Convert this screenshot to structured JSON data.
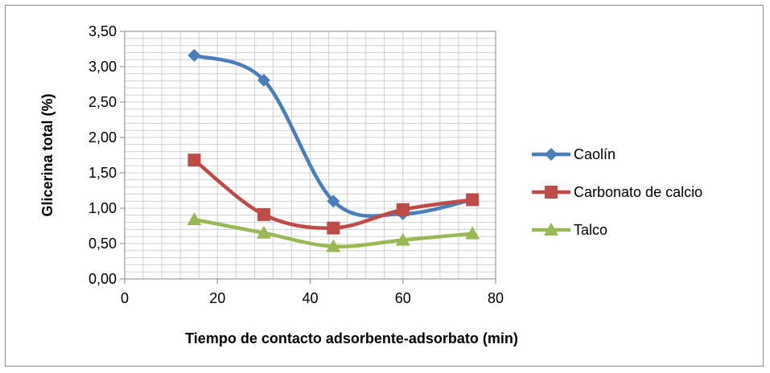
{
  "chart_data": {
    "type": "line",
    "title": "",
    "xlabel": "Tiempo de contacto adsorbente-adsorbato (min)",
    "ylabel": "Glicerina total (%)",
    "xlim": [
      0,
      80
    ],
    "ylim": [
      0,
      3.5
    ],
    "x_ticks": [
      0,
      20,
      40,
      60,
      80
    ],
    "x_tick_labels": [
      "0",
      "20",
      "40",
      "60",
      "80"
    ],
    "y_ticks": [
      0,
      0.5,
      1,
      1.5,
      2,
      2.5,
      3,
      3.5
    ],
    "y_tick_labels": [
      "0,00",
      "0,50",
      "1,00",
      "1,50",
      "2,00",
      "2,50",
      "3,00",
      "3,50"
    ],
    "grid": true,
    "smooth": true,
    "legend_position": "right",
    "x": [
      15,
      30,
      45,
      60,
      75
    ],
    "series": [
      {
        "name": "Caolín",
        "values": [
          3.16,
          2.81,
          1.1,
          0.92,
          1.12
        ],
        "color": "#4a7ebb",
        "marker": "diamond"
      },
      {
        "name": "Carbonato de calcio",
        "values": [
          1.68,
          0.91,
          0.72,
          0.98,
          1.12
        ],
        "color": "#be4b48",
        "marker": "square"
      },
      {
        "name": "Talco",
        "values": [
          0.84,
          0.65,
          0.46,
          0.55,
          0.64
        ],
        "color": "#98b954",
        "marker": "triangle"
      }
    ]
  }
}
